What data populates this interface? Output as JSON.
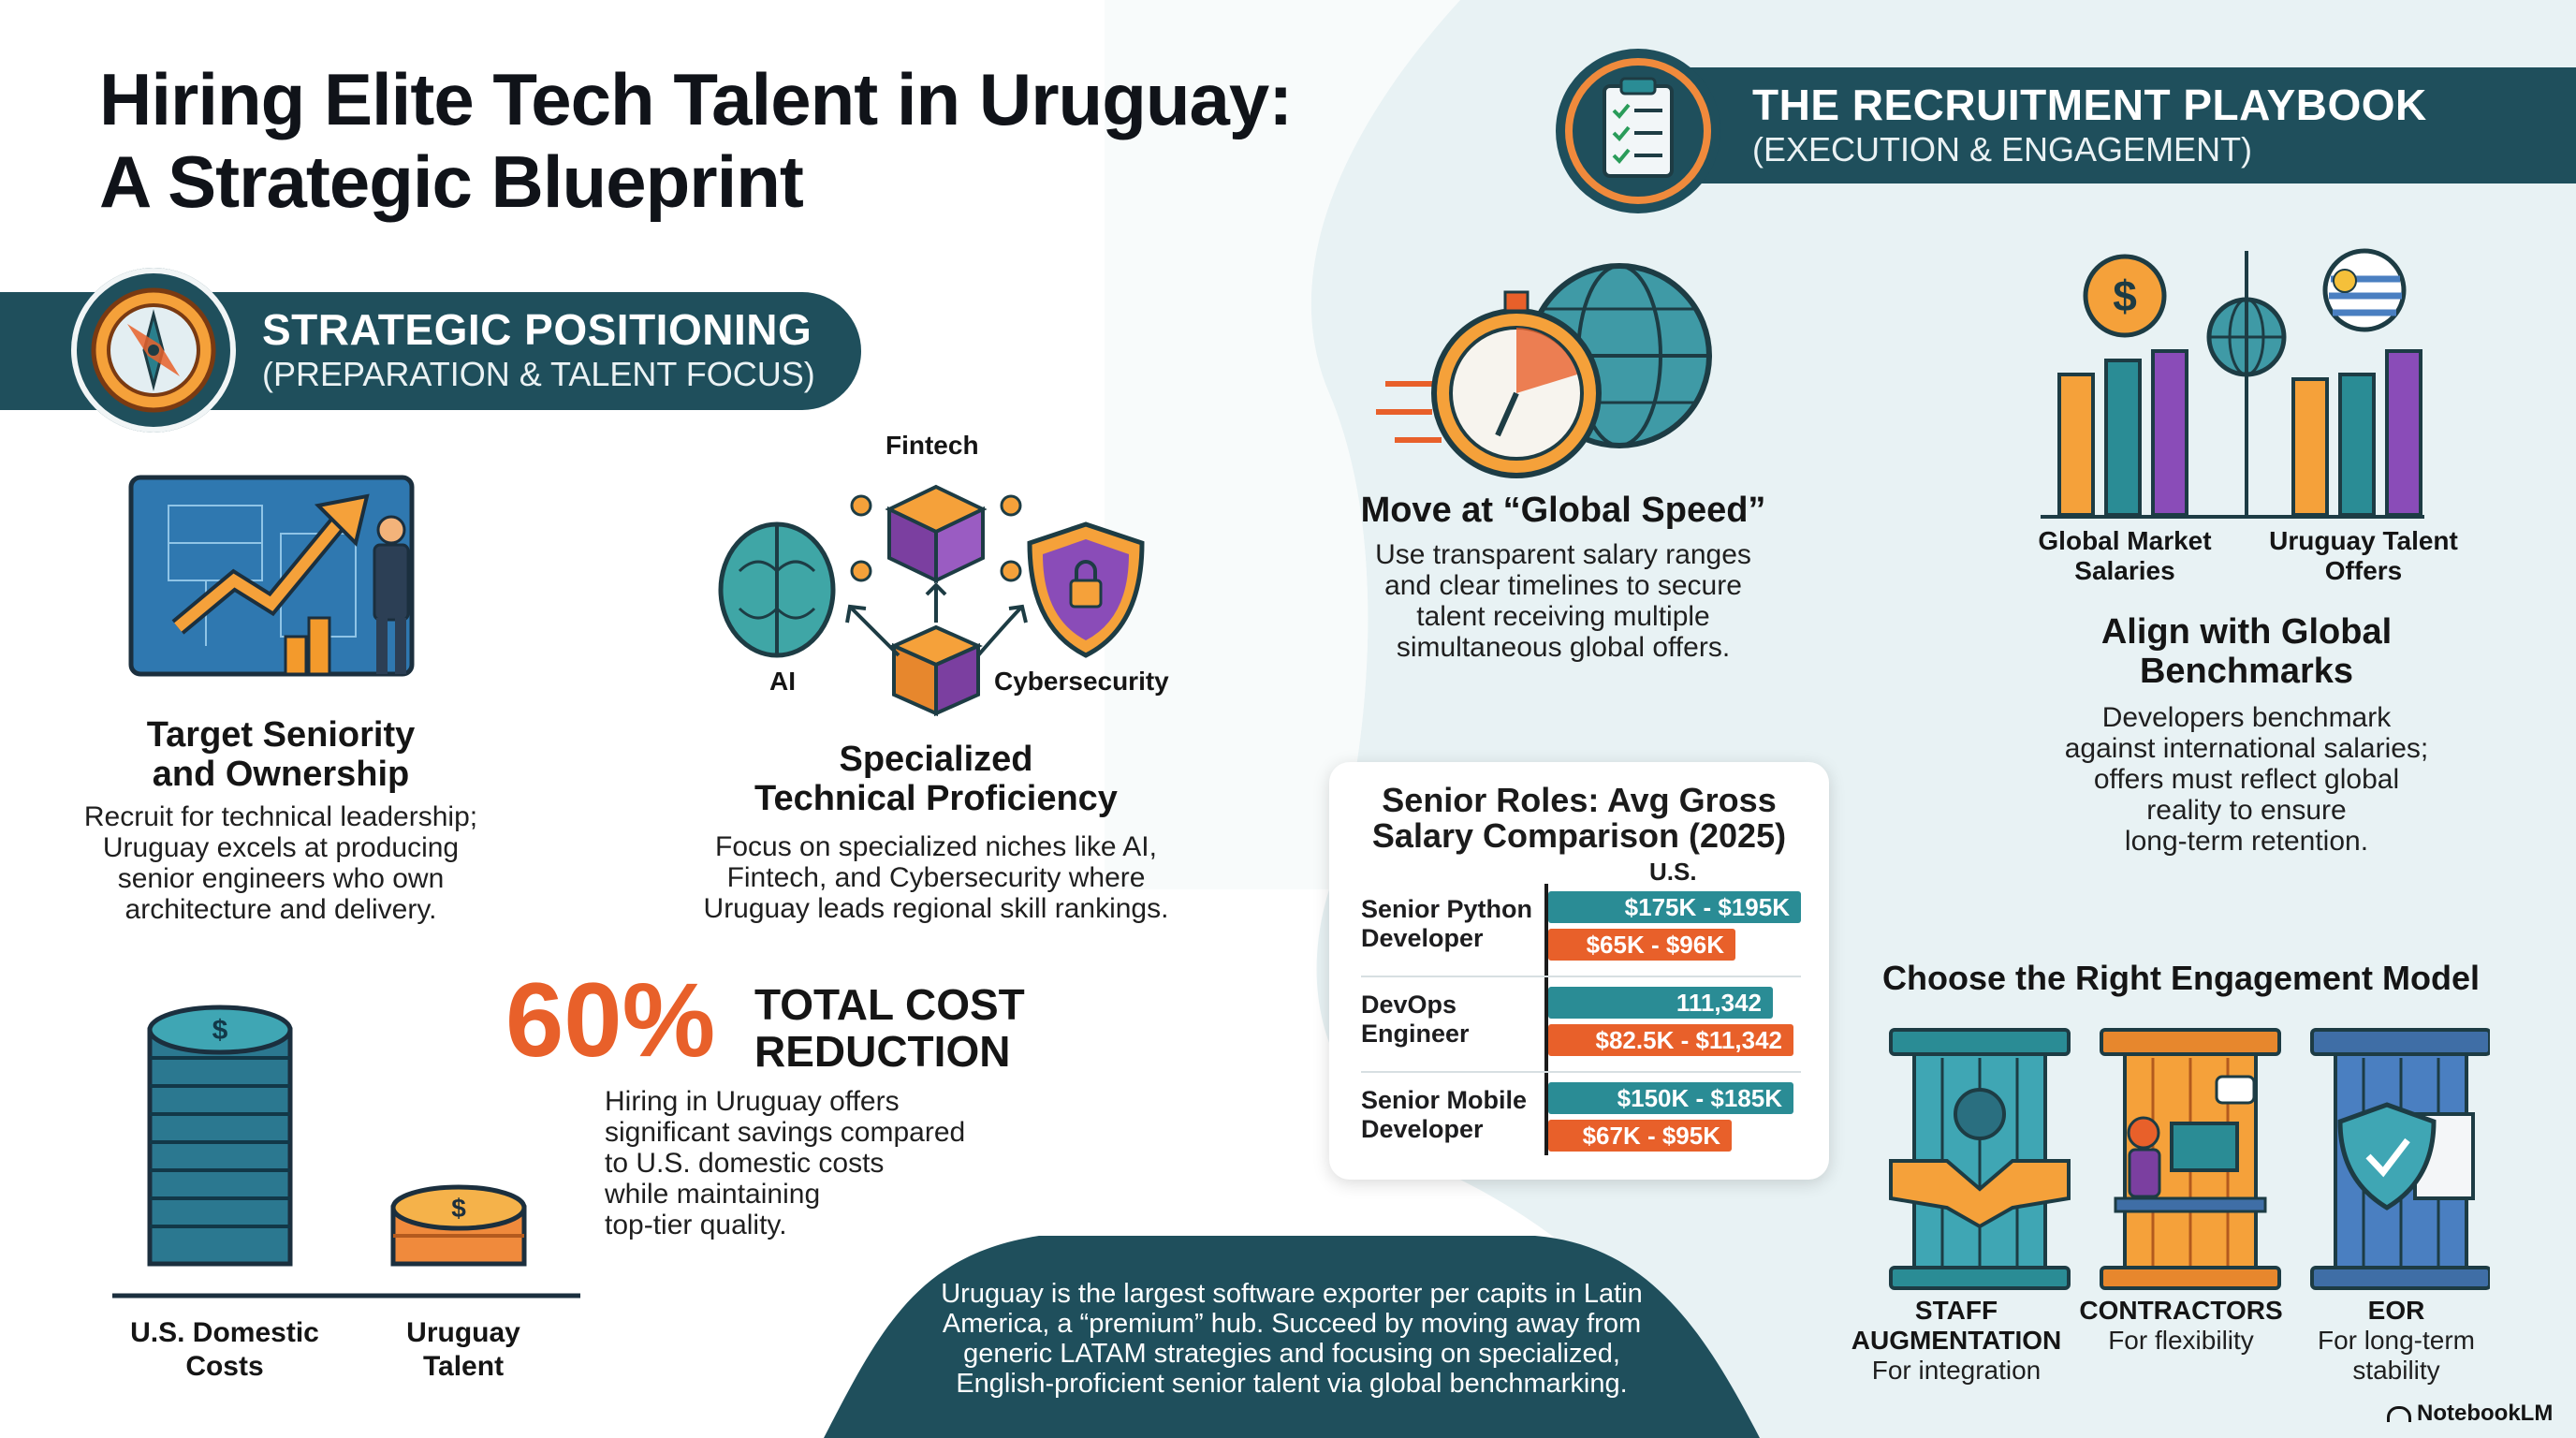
{
  "title": {
    "line1": "Hiring Elite Tech Talent in Uruguay:",
    "line2": "A Strategic Blueprint"
  },
  "strategic_banner": {
    "title": "STRATEGIC POSITIONING",
    "subtitle": "(PREPARATION & TALENT FOCUS)",
    "icon": "compass-icon"
  },
  "playbook_banner": {
    "title": "THE RECRUITMENT PLAYBOOK",
    "subtitle": "(EXECUTION & ENGAGEMENT)",
    "icon": "clipboard-checklist-icon"
  },
  "seniority": {
    "heading_line1": "Target Seniority",
    "heading_line2": "and Ownership",
    "body": [
      "Recruit for technical leadership;",
      "Uruguay excels at producing",
      "senior engineers who own",
      "architecture and delivery."
    ]
  },
  "proficiency": {
    "heading_line1": "Specialized",
    "heading_line2": "Technical Proficiency",
    "body": [
      "Focus on specialized niches like AI,",
      "Fintech, and Cybersecurity where",
      "Uruguay leads regional skill rankings."
    ],
    "diagram": {
      "top": "Fintech",
      "left": "AI",
      "right": "Cybersecurity"
    }
  },
  "cost": {
    "percent": "60%",
    "headline_line1": "TOTAL COST",
    "headline_line2": "REDUCTION",
    "body": [
      "Hiring in Uruguay offers",
      "significant savings compared",
      "to U.S. domestic costs",
      "while maintaining",
      "top-tier quality."
    ],
    "stack_labels": {
      "us_line1": "U.S. Domestic",
      "us_line2": "Costs",
      "uy_line1": "Uruguay",
      "uy_line2": "Talent"
    }
  },
  "speed": {
    "heading": "Move at “Global Speed”",
    "body": [
      "Use transparent salary ranges",
      "and clear timelines to secure",
      "talent receiving multiple",
      "simultaneous global offers."
    ]
  },
  "benchmarks": {
    "left_label_line1": "Global Market",
    "left_label_line2": "Salaries",
    "right_label_line1": "Uruguay Talent",
    "right_label_line2": "Offers",
    "heading_line1": "Align with Global",
    "heading_line2": "Benchmarks",
    "body": [
      "Developers benchmark",
      "against international salaries;",
      "offers must reflect global",
      "reality to ensure",
      "long-term retention."
    ]
  },
  "salary_card": {
    "title_line1": "Senior Roles: Avg Gross",
    "title_line2": "Salary Comparison (2025)",
    "us_header": "U.S.",
    "rows": [
      {
        "role_line1": "Senior Python",
        "role_line2": "Developer",
        "us": "$175K - $195K",
        "uy": "$65K - $96K"
      },
      {
        "role_line1": "DevOps",
        "role_line2": "Engineer",
        "us": "111,342",
        "uy": "$82.5K - $11,342"
      },
      {
        "role_line1": "Senior Mobile",
        "role_line2": "Developer",
        "us": "$150K - $185K",
        "uy": "$67K - $95K"
      }
    ]
  },
  "engagement": {
    "heading": "Choose the Right Engagement Model",
    "models": [
      {
        "name_line1": "STAFF",
        "name_line2": "AUGMENTATION",
        "desc_line1": "For integration",
        "desc_line2": "",
        "icon": "handshake-icon"
      },
      {
        "name_line1": "CONTRACTORS",
        "name_line2": "",
        "desc_line1": "For flexibility",
        "desc_line2": "",
        "icon": "laptop-worker-icon"
      },
      {
        "name_line1": "EOR",
        "name_line2": "",
        "desc_line1": "For long-term",
        "desc_line2": "stability",
        "icon": "shield-document-icon"
      }
    ]
  },
  "footer": {
    "lines": [
      "Uruguay is the largest software exporter per capits in Latin",
      "America, a “premium” hub. Succeed by moving away from",
      "generic LATAM strategies and focusing on specialized,",
      "English-proficient senior talent via global benchmarking."
    ]
  },
  "brand": {
    "name": "NotebookLM"
  },
  "colors": {
    "teal_dark": "#1f4f5c",
    "teal": "#2a8c95",
    "orange": "#e8602a",
    "purple": "#7b3fa0",
    "bg_light": "#e6f1f3"
  }
}
